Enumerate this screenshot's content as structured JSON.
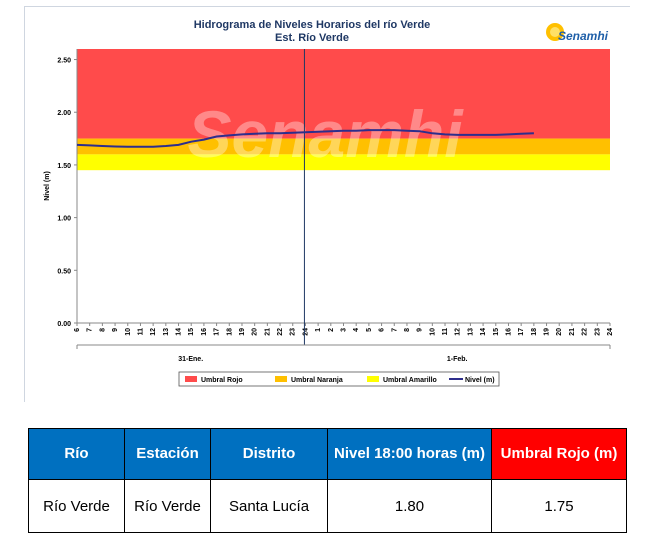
{
  "chart_data": {
    "type": "line",
    "title": "Hidrograma de Niveles Horarios del río Verde",
    "subtitle": "Est. Río Verde",
    "xlabel": "",
    "ylabel": "Nivel (m)",
    "ylim": [
      0,
      2.6
    ],
    "yticks": [
      "0.00",
      "0.50",
      "1.00",
      "1.50",
      "2.00",
      "2.50"
    ],
    "xticks": [
      "6",
      "7",
      "8",
      "9",
      "10",
      "11",
      "12",
      "13",
      "14",
      "15",
      "16",
      "17",
      "18",
      "19",
      "20",
      "21",
      "22",
      "23",
      "24",
      "1",
      "2",
      "3",
      "4",
      "5",
      "6",
      "7",
      "8",
      "9",
      "10",
      "11",
      "12",
      "13",
      "14",
      "15",
      "16",
      "17",
      "18",
      "19",
      "20",
      "21",
      "22",
      "23",
      "24"
    ],
    "day_labels": [
      "31-Ene.",
      "1-Feb."
    ],
    "thresholds": [
      {
        "name": "Umbral Rojo",
        "from": 1.75,
        "to": 2.6,
        "color": "#ff4b4b"
      },
      {
        "name": "Umbral Naranja",
        "from": 1.6,
        "to": 1.75,
        "color": "#ffc000"
      },
      {
        "name": "Umbral Amarillo",
        "from": 1.45,
        "to": 1.6,
        "color": "#ffff00"
      }
    ],
    "series": [
      {
        "name": "Nivel (m)",
        "color": "#2e2e8c",
        "values": [
          1.69,
          1.685,
          1.68,
          1.675,
          1.672,
          1.672,
          1.672,
          1.68,
          1.69,
          1.72,
          1.74,
          1.77,
          1.78,
          1.79,
          1.795,
          1.8,
          1.8,
          1.805,
          1.81,
          1.815,
          1.82,
          1.825,
          1.825,
          1.83,
          1.83,
          1.83,
          1.825,
          1.82,
          1.8,
          1.79,
          1.785,
          1.785,
          1.785,
          1.785,
          1.79,
          1.795,
          1.8
        ]
      }
    ],
    "legend": [
      "Umbral Rojo",
      "Umbral Naranja",
      "Umbral Amarillo",
      "Nivel (m)"
    ],
    "legend_position": "bottom",
    "grid": false
  },
  "logo": {
    "text": "Senamhi"
  },
  "watermark": {
    "text": "Senamhi"
  },
  "table": {
    "headers": [
      "Río",
      "Estación",
      "Distrito",
      "Nivel  18:00 horas (m)",
      "Umbral Rojo (m)"
    ],
    "rows": [
      [
        "Río Verde",
        "Río Verde",
        "Santa Lucía",
        "1.80",
        "1.75"
      ]
    ]
  }
}
